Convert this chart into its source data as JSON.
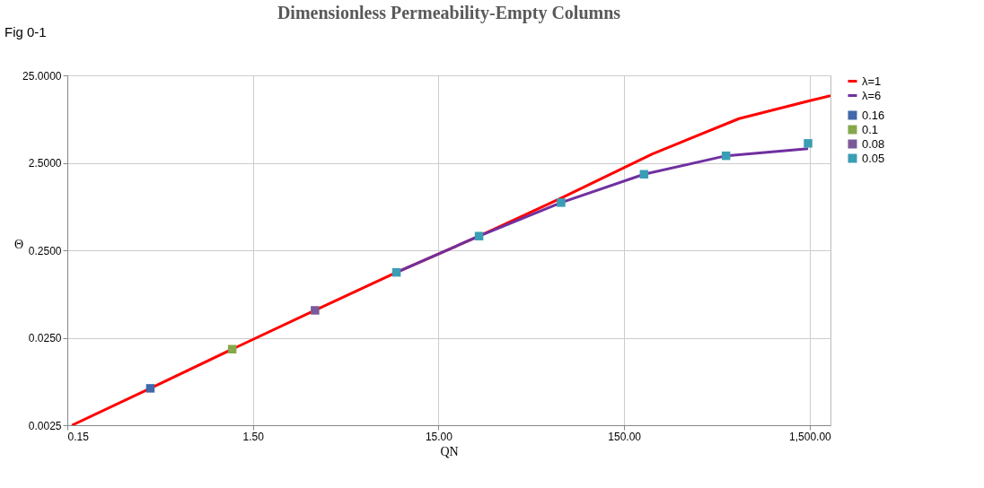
{
  "chart_data": {
    "type": "line",
    "title": "Dimensionless Permeability-Empty Columns",
    "xlabel": "QN",
    "ylabel": "Θ",
    "annotations": [
      "Fig 0-1"
    ],
    "log": "xy",
    "grid": true,
    "legend": "right",
    "xlim": [
      0.15,
      1940
    ],
    "ylim": [
      0.0025,
      25
    ],
    "xticks": [
      {
        "value": 0.15,
        "label": "0.15"
      },
      {
        "value": 1.5,
        "label": "1.50"
      },
      {
        "value": 15,
        "label": "15.00"
      },
      {
        "value": 150,
        "label": "150.00"
      },
      {
        "value": 1500,
        "label": "1,500.00"
      }
    ],
    "yticks": [
      {
        "value": 0.0025,
        "label": "0.0025"
      },
      {
        "value": 0.025,
        "label": "0.0250"
      },
      {
        "value": 0.25,
        "label": "0.2500"
      },
      {
        "value": 2.5,
        "label": "2.5000"
      },
      {
        "value": 25,
        "label": "25.0000"
      }
    ],
    "series": [
      {
        "name": "λ=1",
        "color": "#ff0000",
        "x": [
          0.159,
          0.42,
          1.16,
          3.24,
          8.9,
          24.8,
          68.6,
          213,
          624,
          1469,
          1940
        ],
        "values": [
          0.0025,
          0.0066,
          0.0185,
          0.0514,
          0.14,
          0.363,
          0.986,
          3.16,
          8.0,
          12.7,
          14.6
        ]
      },
      {
        "name": "λ=6",
        "color": "#7030a0",
        "x": [
          8.9,
          24.8,
          68.6,
          192,
          531,
          1469
        ],
        "values": [
          0.14,
          0.363,
          0.877,
          1.85,
          3.01,
          3.63
        ]
      },
      {
        "name": "0.16",
        "type": "scatter",
        "marker": "square",
        "color": "#4169aa",
        "x": [
          0.42
        ],
        "values": [
          0.0066
        ]
      },
      {
        "name": "0.1",
        "type": "scatter",
        "marker": "square",
        "color": "#86a84a",
        "x": [
          1.16
        ],
        "values": [
          0.0185
        ]
      },
      {
        "name": "0.08",
        "type": "scatter",
        "marker": "square",
        "color": "#7a5a99",
        "x": [
          3.24
        ],
        "values": [
          0.0514
        ]
      },
      {
        "name": "0.05",
        "type": "scatter",
        "marker": "square",
        "color": "#3a9eb5",
        "x": [
          8.9,
          24.8,
          68.6,
          192,
          531,
          1469
        ],
        "values": [
          0.1397,
          0.363,
          0.877,
          1.85,
          3.01,
          4.17
        ]
      }
    ]
  }
}
